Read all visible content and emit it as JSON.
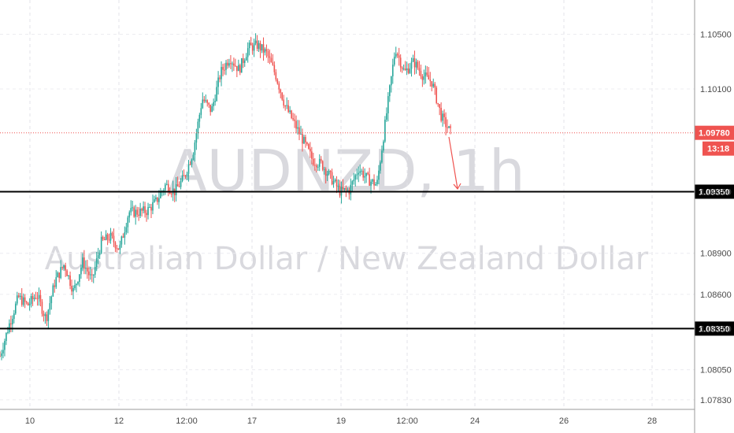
{
  "chart_data": {
    "type": "candlestick",
    "title": "AUDNZD, 1h",
    "subtitle": "Australian Dollar / New Zealand Dollar",
    "x_ticks": [
      "10",
      "12",
      "12:00",
      "17",
      "19",
      "12:00",
      "24",
      "26",
      "28"
    ],
    "y_ticks": [
      "1.10500",
      "1.10100",
      "1.09350",
      "1.08900",
      "1.08600",
      "1.08350",
      "1.08050",
      "1.07830"
    ],
    "ylim": [
      1.0776,
      1.1075
    ],
    "current_price": {
      "value": 1.0978,
      "label": "1.09780",
      "countdown": "13:18",
      "color": "#ef5350"
    },
    "horizontal_lines": [
      {
        "value": 1.0935,
        "label": "1.09350",
        "color": "#000000"
      },
      {
        "value": 1.0835,
        "label": "1.08350",
        "color": "#000000"
      }
    ],
    "projection_arrow": {
      "from": 1.0975,
      "to": 1.0937,
      "color": "#ef5350"
    },
    "anchors": [
      1.0815,
      1.0838,
      1.0858,
      1.0852,
      1.086,
      1.0842,
      1.087,
      1.0882,
      1.0862,
      1.0884,
      1.087,
      1.0898,
      1.0902,
      1.0893,
      1.092,
      1.092,
      1.0921,
      1.0928,
      1.094,
      1.0935,
      1.0945,
      1.0964,
      1.1003,
      1.0994,
      1.1022,
      1.1033,
      1.1024,
      1.104,
      1.1042,
      1.1036,
      1.102,
      1.0998,
      1.0985,
      1.0972,
      1.0958,
      1.0955,
      1.0945,
      1.0935,
      1.0936,
      1.0952,
      1.0944,
      1.094,
      1.099,
      1.104,
      1.1022,
      1.103,
      1.102,
      1.1015,
      1.099,
      1.0978
    ],
    "candle_count": 290,
    "up_color": "#26a69a",
    "down_color": "#ef5350",
    "grid": true
  }
}
